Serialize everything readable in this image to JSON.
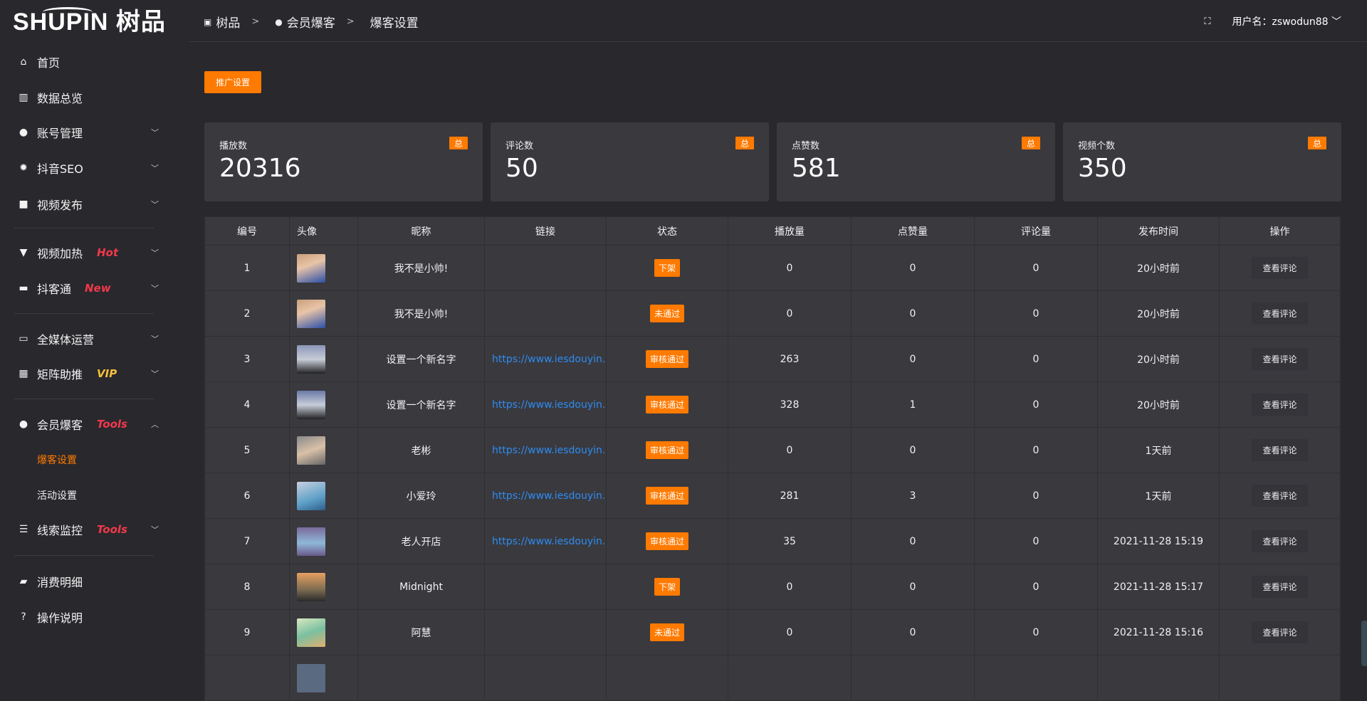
{
  "brand": {
    "logo_text": "SHUPIN树品"
  },
  "sidebar": {
    "items": [
      {
        "label": "首页",
        "icon": "home-icon",
        "glyph": "⌂"
      },
      {
        "label": "数据总览",
        "icon": "bar-chart-icon",
        "glyph": "▥"
      },
      {
        "label": "账号管理",
        "icon": "user-icon",
        "glyph": "●",
        "chevron": "﹀"
      },
      {
        "label": "抖音SEO",
        "icon": "gear-icon",
        "glyph": "✹",
        "chevron": "﹀"
      },
      {
        "label": "视频发布",
        "icon": "camera-icon",
        "glyph": "■",
        "chevron": "﹀"
      },
      {
        "label": "视频加热",
        "icon": "monitor-stand-icon",
        "glyph": "▼",
        "tag": "Hot",
        "chevron": "﹀"
      },
      {
        "label": "抖客通",
        "icon": "chat-icon",
        "glyph": "▬",
        "tag": "New",
        "chevron": "﹀"
      },
      {
        "label": "全媒体运营",
        "icon": "desktop-icon",
        "glyph": "▭",
        "chevron": "﹀"
      },
      {
        "label": "矩阵助推",
        "icon": "grid-icon",
        "glyph": "▦",
        "tag": "VIP",
        "chevron": "﹀"
      },
      {
        "label": "会员爆客",
        "icon": "user-icon",
        "glyph": "●",
        "tag": "Tools",
        "chevron": "︿"
      },
      {
        "label": "线索监控",
        "icon": "sliders-icon",
        "glyph": "☰",
        "tag": "Tools",
        "chevron": "﹀"
      },
      {
        "label": "消费明细",
        "icon": "wallet-icon",
        "glyph": "▰"
      },
      {
        "label": "操作说明",
        "icon": "help-icon",
        "glyph": "?"
      }
    ],
    "subitems": [
      {
        "label": "爆客设置",
        "active": true
      },
      {
        "label": "活动设置",
        "active": false
      }
    ]
  },
  "breadcrumb": [
    "树品",
    "会员爆客",
    "爆客设置"
  ],
  "header": {
    "username_label": "用户名：zswodun88",
    "fullscreen_icon": "fullscreen-icon"
  },
  "promo_button": "推广设置",
  "stats": [
    {
      "title": "播放数",
      "value": "20316",
      "badge": "总"
    },
    {
      "title": "评论数",
      "value": "50",
      "badge": "总"
    },
    {
      "title": "点赞数",
      "value": "581",
      "badge": "总"
    },
    {
      "title": "视频个数",
      "value": "350",
      "badge": "总"
    }
  ],
  "table": {
    "columns": [
      "编号",
      "头像",
      "昵称",
      "链接",
      "状态",
      "播放量",
      "点赞量",
      "评论量",
      "发布时间",
      "操作"
    ],
    "action_label": "查看评论",
    "rows": [
      {
        "id": "1",
        "nickname": "我不是小帅!",
        "link": "",
        "status": "下架",
        "plays": "0",
        "likes": "0",
        "comments": "0",
        "time": "20小时前"
      },
      {
        "id": "2",
        "nickname": "我不是小帅!",
        "link": "",
        "status": "未通过",
        "plays": "0",
        "likes": "0",
        "comments": "0",
        "time": "20小时前"
      },
      {
        "id": "3",
        "nickname": "设置一个新名字",
        "link": "https://www.iesdouyin.c",
        "status": "审核通过",
        "plays": "263",
        "likes": "0",
        "comments": "0",
        "time": "20小时前"
      },
      {
        "id": "4",
        "nickname": "设置一个新名字",
        "link": "https://www.iesdouyin.c",
        "status": "审核通过",
        "plays": "328",
        "likes": "1",
        "comments": "0",
        "time": "20小时前"
      },
      {
        "id": "5",
        "nickname": "老彬",
        "link": "https://www.iesdouyin.c",
        "status": "审核通过",
        "plays": "0",
        "likes": "0",
        "comments": "0",
        "time": "1天前"
      },
      {
        "id": "6",
        "nickname": "小爱玲",
        "link": "https://www.iesdouyin.c",
        "status": "审核通过",
        "plays": "281",
        "likes": "3",
        "comments": "0",
        "time": "1天前"
      },
      {
        "id": "7",
        "nickname": "老人开店",
        "link": "https://www.iesdouyin.c",
        "status": "审核通过",
        "plays": "35",
        "likes": "0",
        "comments": "0",
        "time": "2021-11-28 15:19"
      },
      {
        "id": "8",
        "nickname": "Midnight",
        "link": "",
        "status": "下架",
        "plays": "0",
        "likes": "0",
        "comments": "0",
        "time": "2021-11-28 15:17"
      },
      {
        "id": "9",
        "nickname": "阿慧",
        "link": "",
        "status": "未通过",
        "plays": "0",
        "likes": "0",
        "comments": "0",
        "time": "2021-11-28 15:16"
      }
    ]
  },
  "colors": {
    "accent": "#ff7a00",
    "link": "#2d8cf0",
    "tag_red": "#f0394a",
    "tag_vip": "#f5c03b",
    "bg": "#29282d",
    "card": "#3a393e"
  }
}
